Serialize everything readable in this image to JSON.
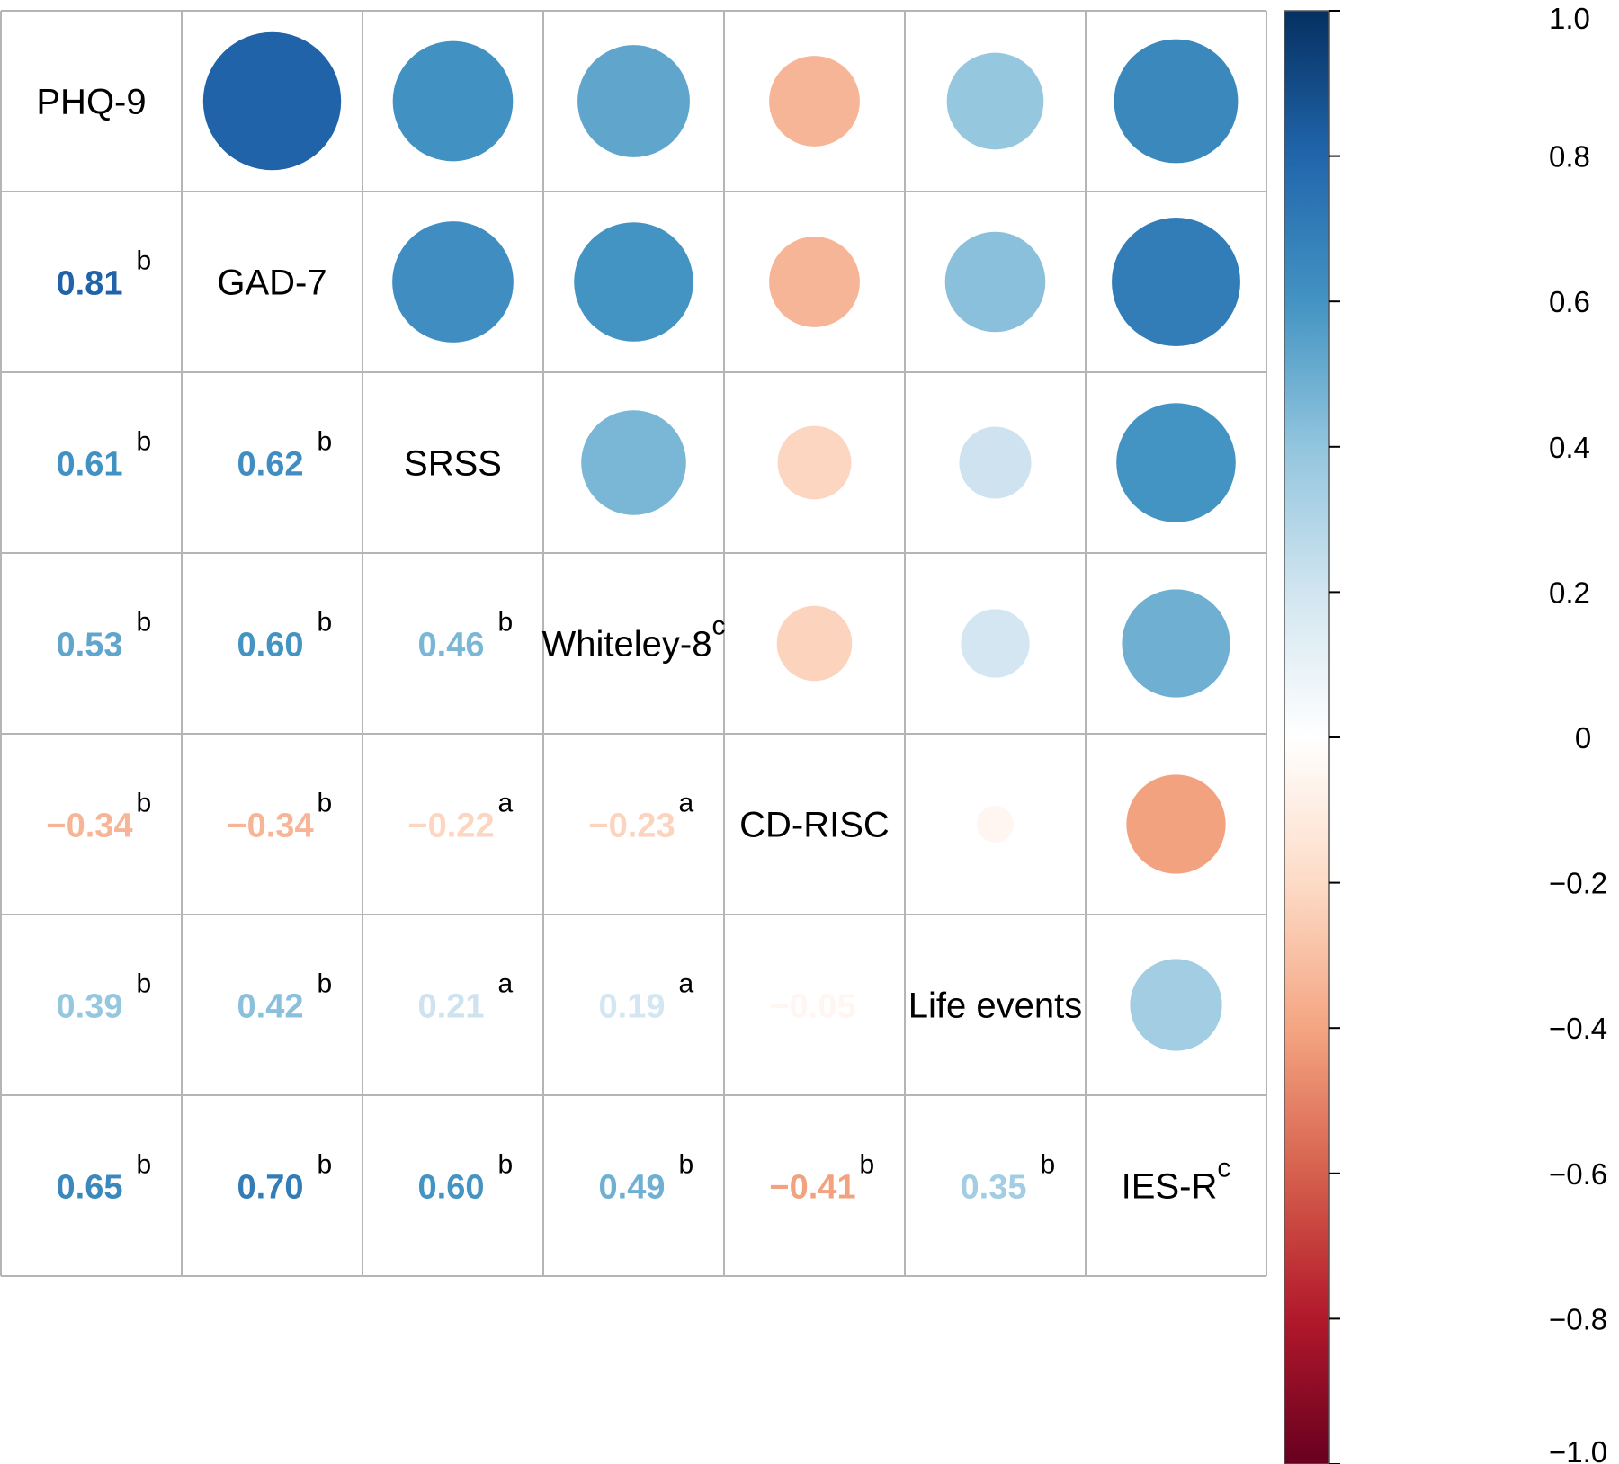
{
  "chart_data": {
    "type": "heatmap",
    "variables": [
      {
        "name": "PHQ-9",
        "superscript": ""
      },
      {
        "name": "GAD-7",
        "superscript": ""
      },
      {
        "name": "SRSS",
        "superscript": ""
      },
      {
        "name": "Whiteley-8",
        "superscript": "c"
      },
      {
        "name": "CD-RISC",
        "superscript": ""
      },
      {
        "name": "Life events",
        "superscript": ""
      },
      {
        "name": "IES-R",
        "superscript": "c"
      }
    ],
    "correlations": [
      {
        "row": 1,
        "col": 0,
        "value": 0.81,
        "value_label": "0.81",
        "sig": "b"
      },
      {
        "row": 2,
        "col": 0,
        "value": 0.61,
        "value_label": "0.61",
        "sig": "b"
      },
      {
        "row": 2,
        "col": 1,
        "value": 0.62,
        "value_label": "0.62",
        "sig": "b"
      },
      {
        "row": 3,
        "col": 0,
        "value": 0.53,
        "value_label": "0.53",
        "sig": "b"
      },
      {
        "row": 3,
        "col": 1,
        "value": 0.6,
        "value_label": "0.60",
        "sig": "b"
      },
      {
        "row": 3,
        "col": 2,
        "value": 0.46,
        "value_label": "0.46",
        "sig": "b"
      },
      {
        "row": 4,
        "col": 0,
        "value": -0.34,
        "value_label": "−0.34",
        "sig": "b"
      },
      {
        "row": 4,
        "col": 1,
        "value": -0.34,
        "value_label": "−0.34",
        "sig": "b"
      },
      {
        "row": 4,
        "col": 2,
        "value": -0.22,
        "value_label": "−0.22",
        "sig": "a"
      },
      {
        "row": 4,
        "col": 3,
        "value": -0.23,
        "value_label": "−0.23",
        "sig": "a"
      },
      {
        "row": 5,
        "col": 0,
        "value": 0.39,
        "value_label": "0.39",
        "sig": "b"
      },
      {
        "row": 5,
        "col": 1,
        "value": 0.42,
        "value_label": "0.42",
        "sig": "b"
      },
      {
        "row": 5,
        "col": 2,
        "value": 0.21,
        "value_label": "0.21",
        "sig": "a"
      },
      {
        "row": 5,
        "col": 3,
        "value": 0.19,
        "value_label": "0.19",
        "sig": "a"
      },
      {
        "row": 5,
        "col": 4,
        "value": -0.05,
        "value_label": "−0.05",
        "sig": ""
      },
      {
        "row": 6,
        "col": 0,
        "value": 0.65,
        "value_label": "0.65",
        "sig": "b"
      },
      {
        "row": 6,
        "col": 1,
        "value": 0.7,
        "value_label": "0.70",
        "sig": "b"
      },
      {
        "row": 6,
        "col": 2,
        "value": 0.6,
        "value_label": "0.60",
        "sig": "b"
      },
      {
        "row": 6,
        "col": 3,
        "value": 0.49,
        "value_label": "0.49",
        "sig": "b"
      },
      {
        "row": 6,
        "col": 4,
        "value": -0.41,
        "value_label": "−0.41",
        "sig": "b"
      },
      {
        "row": 6,
        "col": 5,
        "value": 0.35,
        "value_label": "0.35",
        "sig": "b"
      }
    ],
    "colorbar": {
      "range": [
        -1,
        1
      ],
      "ticks": [
        1.0,
        0.8,
        0.6,
        0.4,
        0.2,
        0,
        -0.2,
        -0.4,
        -0.6,
        -0.8,
        -1.0
      ],
      "tick_labels": [
        "1.0",
        "0.8",
        "0.6",
        "0.4",
        "0.2",
        "0",
        "−0.2",
        "−0.4",
        "−0.6",
        "−0.8",
        "−1.0"
      ],
      "colors": [
        "#67001f",
        "#b2182b",
        "#d6604d",
        "#f4a582",
        "#fddbc7",
        "#ffffff",
        "#d1e5f0",
        "#92c5de",
        "#4393c3",
        "#2166ac",
        "#053061"
      ]
    },
    "upper_triangle_glyph": "circle",
    "lower_triangle_glyph": "number",
    "grid": true
  }
}
